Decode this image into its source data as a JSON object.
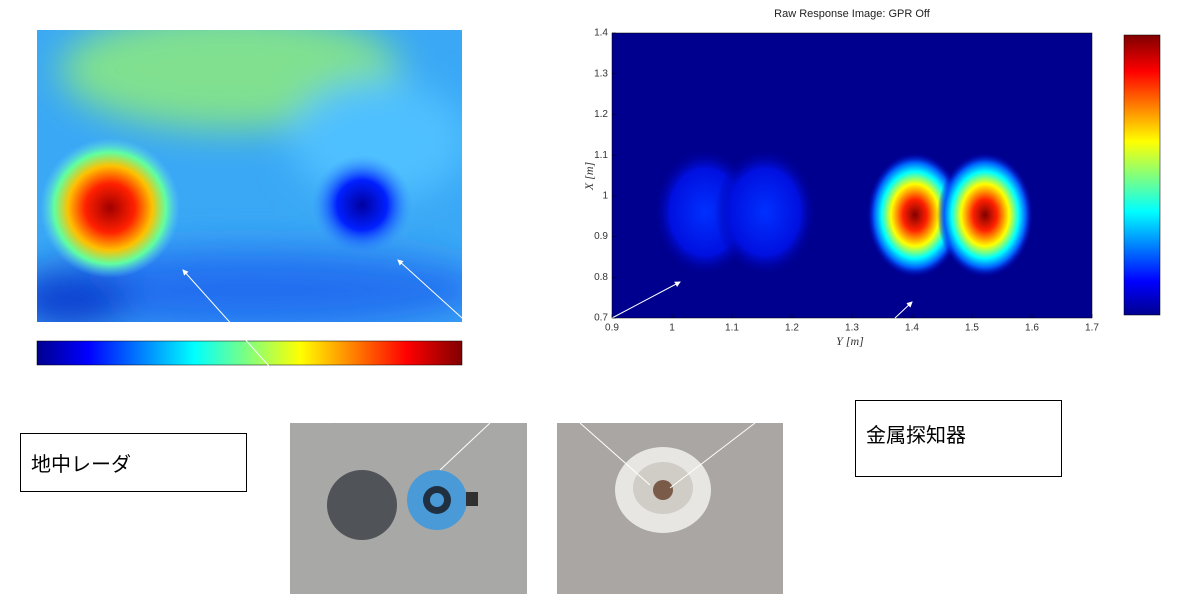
{
  "right_image": {
    "title": "Raw Response Image: GPR Off",
    "xlabel": "Y [m]",
    "ylabel": "X [m]",
    "xlim": [
      0.9,
      1.7
    ],
    "xticks": [
      0.9,
      1,
      1.1,
      1.2,
      1.3,
      1.4,
      1.5,
      1.6,
      1.7
    ],
    "ylim": [
      0.7,
      1.4
    ],
    "yticks": [
      0.7,
      0.8,
      0.9,
      1,
      1.1,
      1.2,
      1.3,
      1.4
    ]
  },
  "labels": {
    "gpr": "地中レーダ",
    "metal_detector": "金属探知器"
  }
}
